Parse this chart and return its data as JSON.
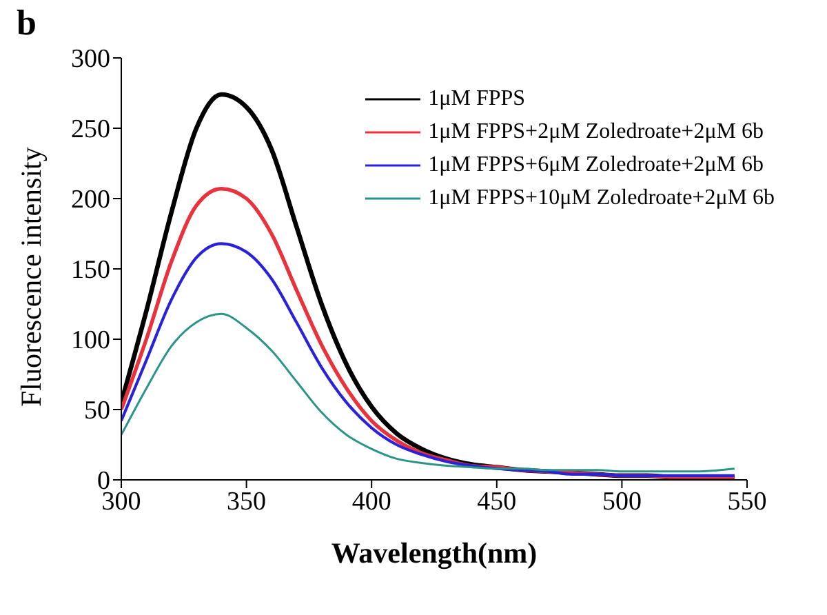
{
  "chart_data": {
    "type": "line",
    "xlabel": "Wavelength(nm)",
    "ylabel": "Fluorescence intensity",
    "annotations": [
      "b"
    ],
    "x": [
      300,
      310,
      320,
      330,
      340,
      350,
      360,
      370,
      380,
      390,
      400,
      410,
      420,
      430,
      440,
      450,
      460,
      470,
      480,
      490,
      500,
      510,
      520,
      530,
      545
    ],
    "series": [
      {
        "name": "1μM FPPS",
        "color": "#000000",
        "values": [
          55,
          120,
          190,
          250,
          274,
          265,
          235,
          180,
          125,
          82,
          52,
          33,
          22,
          15,
          11,
          9,
          7,
          6,
          5,
          4,
          3,
          3,
          2,
          2,
          2
        ]
      },
      {
        "name": "1μM FPPS+2μM Zoledroate+2μM 6b",
        "color": "#e8323c",
        "values": [
          50,
          100,
          155,
          195,
          207,
          200,
          175,
          135,
          96,
          65,
          42,
          28,
          19,
          14,
          10,
          9,
          7,
          6,
          5,
          4,
          3,
          3,
          2,
          2,
          2
        ]
      },
      {
        "name": "1μM FPPS+6μM Zoledroate+2μM 6b",
        "color": "#2a22d8",
        "values": [
          42,
          85,
          128,
          158,
          168,
          162,
          143,
          112,
          80,
          55,
          37,
          25,
          18,
          13,
          10,
          8,
          7,
          6,
          4,
          4,
          3,
          3,
          3,
          3,
          3
        ]
      },
      {
        "name": "1μM FPPS+10μM Zoledroate+2μM 6b",
        "color": "#2a9488",
        "values": [
          32,
          65,
          95,
          112,
          118,
          108,
          92,
          70,
          48,
          32,
          22,
          15,
          12,
          10,
          9,
          8,
          8,
          7,
          7,
          7,
          6,
          6,
          6,
          6,
          8
        ]
      }
    ],
    "xlim": [
      300,
      550
    ],
    "xticks": [
      300,
      350,
      400,
      450,
      500,
      550
    ],
    "ylim": [
      0,
      300
    ],
    "yticks": [
      0,
      50,
      100,
      150,
      200,
      250,
      300
    ],
    "grid": false,
    "legend": "top right",
    "marker": "none",
    "line_style": "solid"
  }
}
